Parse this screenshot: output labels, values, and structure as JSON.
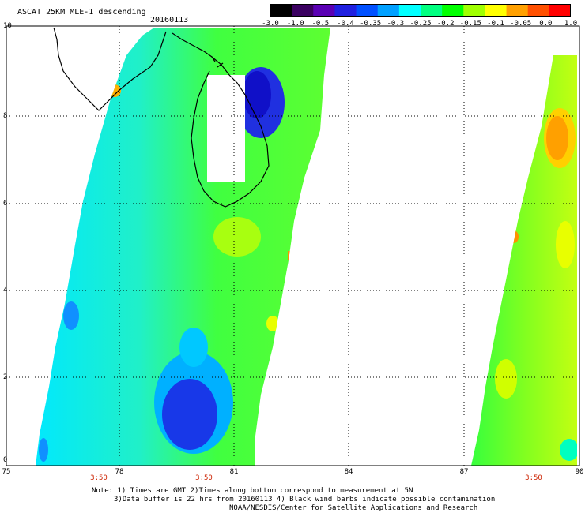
{
  "title": "ASCAT 25KM MLE-1 descending",
  "date": "20160113",
  "colorbar": {
    "labels": [
      "-3.0",
      "-1.0",
      "-0.5",
      "-0.4",
      "-0.35",
      "-0.3",
      "-0.25",
      "-0.2",
      "-0.15",
      "-0.1",
      "-0.05",
      "0.0",
      "1.0"
    ],
    "colors": [
      "#000000",
      "#3a0060",
      "#5a00b4",
      "#2020e0",
      "#0050ff",
      "#00a0ff",
      "#00ffff",
      "#00ff80",
      "#00ff00",
      "#a0ff00",
      "#ffff00",
      "#ffa000",
      "#ff5000",
      "#ff0000"
    ]
  },
  "axes": {
    "y_ticks": [
      "10",
      "8",
      "6",
      "4",
      "2",
      "0"
    ],
    "x_ticks": [
      "75",
      "78",
      "81",
      "84",
      "87",
      "90"
    ],
    "time_labels": [
      "3:50",
      "3:50",
      "3:50"
    ]
  },
  "notes": {
    "line1": "Note: 1) Times are GMT 2)Times along bottom correspond to measurement at 5N",
    "line2": "3)Data buffer is 22 hrs from 20160113 4) Black wind barbs indicate possible contamination",
    "line3": "NOAA/NESDIS/Center for Satellite Applications and Research"
  },
  "map": {
    "lon_range": [
      75,
      90
    ],
    "lat_range": [
      0,
      10
    ],
    "land_label": "sri-lanka-coastline",
    "swaths": [
      {
        "name": "west-swath",
        "value_range": [
          -0.45,
          -0.05
        ]
      },
      {
        "name": "east-swath",
        "value_range": [
          -0.25,
          -0.02
        ]
      }
    ]
  }
}
